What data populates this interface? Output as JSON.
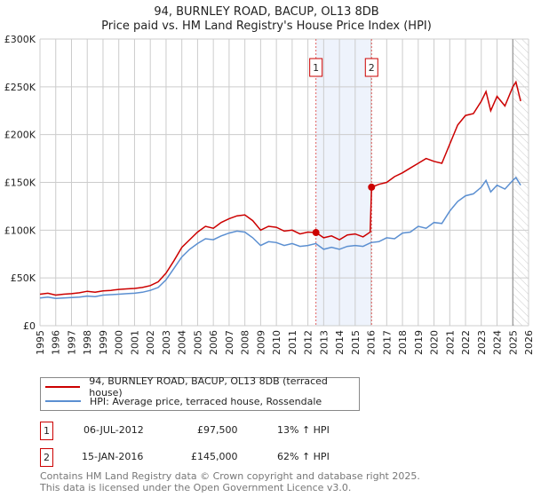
{
  "title_line1": "94, BURNLEY ROAD, BACUP, OL13 8DB",
  "title_line2": "Price paid vs. HM Land Registry's House Price Index (HPI)",
  "chart_data": {
    "type": "line",
    "title": "94, BURNLEY ROAD, BACUP, OL13 8DB - Price paid vs. HM Land Registry's House Price Index (HPI)",
    "xlim": [
      1995,
      2026
    ],
    "ylim": [
      0,
      300000
    ],
    "x_ticks": [
      "1995",
      "1996",
      "1997",
      "1998",
      "1999",
      "2000",
      "2001",
      "2002",
      "2003",
      "2004",
      "2005",
      "2006",
      "2007",
      "2008",
      "2009",
      "2010",
      "2011",
      "2012",
      "2013",
      "2014",
      "2015",
      "2016",
      "2017",
      "2018",
      "2019",
      "2020",
      "2021",
      "2022",
      "2023",
      "2024",
      "2025",
      "2026"
    ],
    "y_ticks": [
      {
        "v": 0,
        "label": "£0"
      },
      {
        "v": 50000,
        "label": "£50K"
      },
      {
        "v": 100000,
        "label": "£100K"
      },
      {
        "v": 150000,
        "label": "£150K"
      },
      {
        "v": 200000,
        "label": "£200K"
      },
      {
        "v": 250000,
        "label": "£250K"
      },
      {
        "v": 300000,
        "label": "£300K"
      }
    ],
    "grid": true,
    "shaded_range": [
      2012.51,
      2016.04
    ],
    "forecast_hatch_from": 2025.0,
    "series": [
      {
        "name": "94, BURNLEY ROAD, BACUP, OL13 8DB (terraced house)",
        "color": "#cc0000",
        "x": [
          1995,
          1995.5,
          1996,
          1996.5,
          1997,
          1997.5,
          1998,
          1998.5,
          1999,
          1999.5,
          2000,
          2000.5,
          2001,
          2001.5,
          2002,
          2002.5,
          2003,
          2003.5,
          2004,
          2004.5,
          2005,
          2005.5,
          2006,
          2006.5,
          2007,
          2007.5,
          2008,
          2008.5,
          2009,
          2009.5,
          2010,
          2010.5,
          2011,
          2011.5,
          2012,
          2012.51,
          2013,
          2013.5,
          2014,
          2014.5,
          2015,
          2015.5,
          2015.95,
          2016.04,
          2016.5,
          2017,
          2017.5,
          2018,
          2018.5,
          2019,
          2019.5,
          2020,
          2020.5,
          2021,
          2021.5,
          2022,
          2022.5,
          2023,
          2023.3,
          2023.6,
          2024,
          2024.5,
          2025,
          2025.2,
          2025.5
        ],
        "y": [
          33000,
          34000,
          32000,
          33000,
          33500,
          34500,
          36000,
          35000,
          36500,
          37000,
          38000,
          38500,
          39000,
          40000,
          42000,
          46000,
          55000,
          68000,
          82000,
          90000,
          98000,
          104000,
          102000,
          108000,
          112000,
          115000,
          116000,
          110000,
          100000,
          104000,
          103000,
          99000,
          100000,
          96000,
          98000,
          97500,
          92000,
          94000,
          90000,
          95000,
          96000,
          93000,
          98000,
          145000,
          148000,
          150000,
          156000,
          160000,
          165000,
          170000,
          175000,
          172000,
          170000,
          190000,
          210000,
          220000,
          222000,
          235000,
          245000,
          225000,
          240000,
          230000,
          250000,
          255000,
          235000
        ]
      },
      {
        "name": "HPI: Average price, terraced house, Rossendale",
        "color": "#5b8fd1",
        "x": [
          1995,
          1995.5,
          1996,
          1996.5,
          1997,
          1997.5,
          1998,
          1998.5,
          1999,
          1999.5,
          2000,
          2000.5,
          2001,
          2001.5,
          2002,
          2002.5,
          2003,
          2003.5,
          2004,
          2004.5,
          2005,
          2005.5,
          2006,
          2006.5,
          2007,
          2007.5,
          2008,
          2008.5,
          2009,
          2009.5,
          2010,
          2010.5,
          2011,
          2011.5,
          2012,
          2012.5,
          2013,
          2013.5,
          2014,
          2014.5,
          2015,
          2015.5,
          2016,
          2016.5,
          2017,
          2017.5,
          2018,
          2018.5,
          2019,
          2019.5,
          2020,
          2020.5,
          2021,
          2021.5,
          2022,
          2022.5,
          2023,
          2023.3,
          2023.6,
          2024,
          2024.5,
          2025,
          2025.2,
          2025.5
        ],
        "y": [
          29000,
          30000,
          28500,
          29000,
          29500,
          30000,
          31000,
          30500,
          32000,
          32500,
          33000,
          33500,
          34000,
          35000,
          37000,
          40000,
          48000,
          60000,
          72000,
          80000,
          86000,
          91000,
          90000,
          94000,
          97000,
          99000,
          98000,
          92000,
          84000,
          88000,
          87000,
          84000,
          86000,
          83000,
          84000,
          86000,
          80000,
          82000,
          80000,
          83000,
          84000,
          83000,
          87000,
          88000,
          92000,
          91000,
          97000,
          98000,
          104000,
          102000,
          108000,
          107000,
          120000,
          130000,
          136000,
          138000,
          145000,
          152000,
          140000,
          147000,
          143000,
          152000,
          155000,
          147000
        ]
      }
    ],
    "sales": [
      {
        "n": "1",
        "x": 2012.51,
        "y": 97500
      },
      {
        "n": "2",
        "x": 2016.04,
        "y": 145000
      }
    ]
  },
  "legend": {
    "items": [
      {
        "label": "94, BURNLEY ROAD, BACUP, OL13 8DB (terraced house)",
        "color": "#cc0000"
      },
      {
        "label": "HPI: Average price, terraced house, Rossendale",
        "color": "#5b8fd1"
      }
    ]
  },
  "transactions": [
    {
      "n": "1",
      "date": "06-JUL-2012",
      "price": "£97,500",
      "hpi": "13% ↑ HPI"
    },
    {
      "n": "2",
      "date": "15-JAN-2016",
      "price": "£145,000",
      "hpi": "62% ↑ HPI"
    }
  ],
  "footer": {
    "line1": "Contains HM Land Registry data © Crown copyright and database right 2025.",
    "line2": "This data is licensed under the Open Government Licence v3.0."
  }
}
